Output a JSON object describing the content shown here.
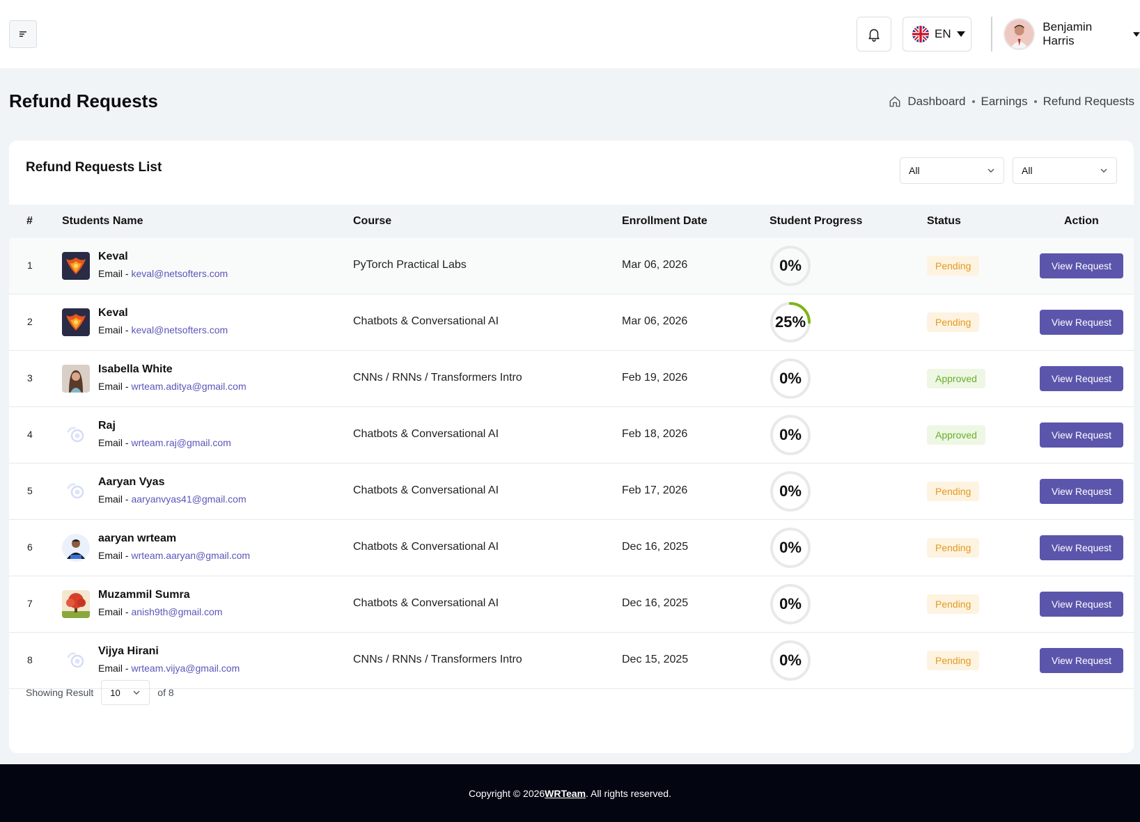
{
  "header": {
    "language": "EN",
    "user_name": "Benjamin Harris"
  },
  "page": {
    "title": "Refund Requests",
    "breadcrumb": [
      "Dashboard",
      "Earnings",
      "Refund Requests"
    ]
  },
  "card": {
    "title": "Refund Requests List",
    "filter1": "All",
    "filter2": "All"
  },
  "table": {
    "headers": [
      "#",
      "Students Name",
      "Course",
      "Enrollment Date",
      "Student Progress",
      "Status",
      "Action"
    ],
    "email_prefix": "Email - ",
    "action_label": "View Request",
    "rows": [
      {
        "num": "1",
        "name": "Keval",
        "email": "keval@netsofters.com",
        "course": "PyTorch Practical Labs",
        "date": "Mar 06, 2026",
        "progress": "0%",
        "progress_value": 0,
        "status": "Pending",
        "avatar": "phoenix-avatar"
      },
      {
        "num": "2",
        "name": "Keval",
        "email": "keval@netsofters.com",
        "course": "Chatbots & Conversational AI",
        "date": "Mar 06, 2026",
        "progress": "25%",
        "progress_value": 25,
        "status": "Pending",
        "avatar": "phoenix-avatar"
      },
      {
        "num": "3",
        "name": "Isabella White",
        "email": "wrteam.aditya@gmail.com",
        "course": "CNNs / RNNs / Transformers Intro",
        "date": "Feb 19, 2026",
        "progress": "0%",
        "progress_value": 0,
        "status": "Approved",
        "avatar": "woman-photo-avatar"
      },
      {
        "num": "4",
        "name": "Raj",
        "email": "wrteam.raj@gmail.com",
        "course": "Chatbots & Conversational AI",
        "date": "Feb 18, 2026",
        "progress": "0%",
        "progress_value": 0,
        "status": "Approved",
        "avatar": "placeholder-avatar"
      },
      {
        "num": "5",
        "name": "Aaryan Vyas",
        "email": "aaryanvyas41@gmail.com",
        "course": "Chatbots & Conversational AI",
        "date": "Feb 17, 2026",
        "progress": "0%",
        "progress_value": 0,
        "status": "Pending",
        "avatar": "placeholder-avatar"
      },
      {
        "num": "6",
        "name": "aaryan wrteam",
        "email": "wrteam.aaryan@gmail.com",
        "course": "Chatbots & Conversational AI",
        "date": "Dec 16, 2025",
        "progress": "0%",
        "progress_value": 0,
        "status": "Pending",
        "avatar": "man-photo-avatar"
      },
      {
        "num": "7",
        "name": "Muzammil Sumra",
        "email": "anish9th@gmail.com",
        "course": "Chatbots & Conversational AI",
        "date": "Dec 16, 2025",
        "progress": "0%",
        "progress_value": 0,
        "status": "Pending",
        "avatar": "tree-photo-avatar"
      },
      {
        "num": "8",
        "name": "Vijya Hirani",
        "email": "wrteam.vijya@gmail.com",
        "course": "CNNs / RNNs / Transformers Intro",
        "date": "Dec 15, 2025",
        "progress": "0%",
        "progress_value": 0,
        "status": "Pending",
        "avatar": "placeholder-avatar"
      }
    ]
  },
  "pagination": {
    "label": "Showing Result",
    "per_page": "10",
    "total": "of 8"
  },
  "footer": {
    "prefix": "Copyright © 2026 ",
    "brand": "WRTeam",
    "suffix": ". All rights reserved."
  },
  "colors": {
    "primary": "#5c55ac",
    "pending_text": "#e39a1d",
    "pending_bg": "#fdf3e0",
    "approved_text": "#6aae2a",
    "approved_bg": "#eef7e4",
    "progress_arc": "#7cb518",
    "footer_bg": "#030611"
  }
}
